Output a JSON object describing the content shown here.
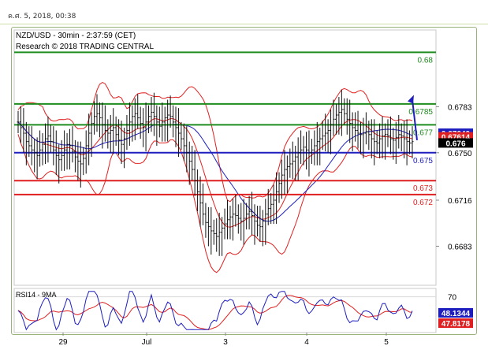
{
  "header": {
    "datetime": "ค.ศ. 5, 2018, 00:38"
  },
  "chart_data": {
    "type": "line",
    "title": "NZD/USD - 30min - 2:37:59 (CET)",
    "subtitle": "Research © 2018 TRADING CENTRAL",
    "price_axis": {
      "ticks": [
        "0.6783",
        "0.6750",
        "0.6716",
        "0.6683"
      ],
      "ylim": [
        0.6655,
        0.6838
      ]
    },
    "x_tick_labels": [
      "29",
      "Jul",
      "3",
      "4",
      "5"
    ],
    "levels": [
      {
        "label": "0.68",
        "value": 0.6822,
        "color": "#1e8c1e"
      },
      {
        "label": "0.6785",
        "value": 0.6785,
        "color": "#1e8c1e"
      },
      {
        "label": "0.677",
        "value": 0.677,
        "color": "#1e8c1e"
      },
      {
        "label": "0.675",
        "value": 0.675,
        "color": "#1e1ebf"
      },
      {
        "label": "0.673",
        "value": 0.673,
        "color": "#e02020"
      },
      {
        "label": "0.672",
        "value": 0.672,
        "color": "#e02020"
      }
    ],
    "price_badges": [
      {
        "label": "0.67640",
        "value": 0.6764,
        "color": "#1e1ebf"
      },
      {
        "label": "0.67614",
        "value": 0.67614,
        "color": "#e02020"
      },
      {
        "label": "0.676",
        "value": 0.6757,
        "color": "#000000"
      }
    ],
    "close_series": [
      0.6772,
      0.6768,
      0.6764,
      0.6758,
      0.6755,
      0.6752,
      0.675,
      0.6748,
      0.6752,
      0.6756,
      0.676,
      0.6762,
      0.6758,
      0.6752,
      0.6748,
      0.6745,
      0.6748,
      0.6752,
      0.6756,
      0.6755,
      0.6751,
      0.6747,
      0.6744,
      0.6742,
      0.6746,
      0.6755,
      0.6764,
      0.6771,
      0.6776,
      0.6778,
      0.6775,
      0.677,
      0.6766,
      0.6764,
      0.6766,
      0.6768,
      0.6763,
      0.6759,
      0.6756,
      0.676,
      0.6766,
      0.6772,
      0.6776,
      0.6778,
      0.6775,
      0.6771,
      0.6768,
      0.6772,
      0.6776,
      0.6779,
      0.6776,
      0.6772,
      0.6769,
      0.6772,
      0.6775,
      0.6777,
      0.6776,
      0.6772,
      0.6768,
      0.6764,
      0.676,
      0.6755,
      0.675,
      0.6744,
      0.6738,
      0.673,
      0.6722,
      0.6714,
      0.6706,
      0.67,
      0.6697,
      0.6694,
      0.6692,
      0.669,
      0.6693,
      0.6696,
      0.6699,
      0.6702,
      0.6704,
      0.6706,
      0.6705,
      0.6703,
      0.6701,
      0.6703,
      0.6706,
      0.6708,
      0.6705,
      0.6701,
      0.6698,
      0.6697,
      0.6701,
      0.6706,
      0.671,
      0.6713,
      0.6716,
      0.6722,
      0.6728,
      0.6734,
      0.6738,
      0.674,
      0.6742,
      0.6744,
      0.6747,
      0.675,
      0.6752,
      0.6754,
      0.6752,
      0.675,
      0.6752,
      0.6755,
      0.6758,
      0.676,
      0.6762,
      0.6764,
      0.6766,
      0.677,
      0.6774,
      0.6777,
      0.6779,
      0.6781,
      0.6778,
      0.6774,
      0.6771,
      0.6768,
      0.6766,
      0.6764,
      0.6763,
      0.6764,
      0.6765,
      0.6763,
      0.676,
      0.6758,
      0.6757,
      0.676,
      0.6762,
      0.6763,
      0.6762,
      0.676,
      0.6759,
      0.6761,
      0.6763,
      0.6762,
      0.676,
      0.6758,
      0.6757,
      0.6758
    ],
    "forecast_arrow": {
      "from": 0.6759,
      "to": 0.6788
    },
    "rsi": {
      "title": "RSI14 - 9MA",
      "tick": "70",
      "ylim": [
        20,
        80
      ],
      "badges": [
        {
          "label": "48.1344",
          "value": 48.1344,
          "color": "#1e1ebf"
        },
        {
          "label": "47.8178",
          "value": 47.8178,
          "color": "#e02020"
        }
      ]
    }
  }
}
